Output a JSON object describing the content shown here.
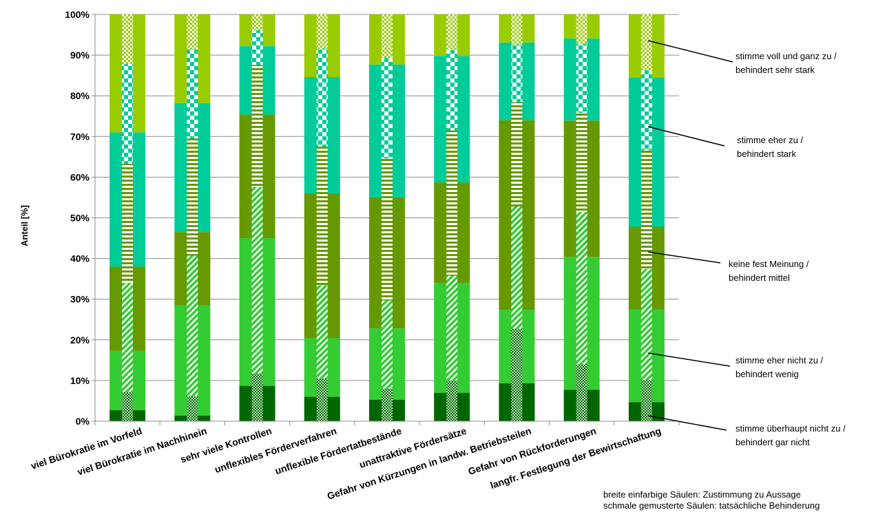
{
  "chart_data": {
    "type": "bar",
    "stacked": true,
    "ylabel": "Anteil [%]",
    "ylim": [
      0,
      100
    ],
    "yticks": [
      "0%",
      "10%",
      "20%",
      "30%",
      "40%",
      "50%",
      "60%",
      "70%",
      "80%",
      "90%",
      "100%"
    ],
    "grid": true,
    "categories": [
      "viel Bürokratie im Vorfeld",
      "viel Bürokratie im Nachhinein",
      "sehr viele Kontrollen",
      "unflexibles Förderverfahren",
      "unflexible Fördertatbestände",
      "unattraktive Fördersätze",
      "Gefahr von Kürzungen in landw. Betriebsteilen",
      "Gefahr von Rückforderungen",
      "langfr. Festlegung der Bewirtschaftung"
    ],
    "series_labels": [
      "stimme überhaupt nicht zu / behindert gar nicht",
      "stimme eher nicht zu / behindert wenig",
      "keine fest Meinung / behindert mittel",
      "stimme eher zu / behindert stark",
      "stimme voll und ganz zu / behindert sehr stark"
    ],
    "colors": [
      "#006600",
      "#33cc33",
      "#669900",
      "#00cc99",
      "#99cc00"
    ],
    "agreement_cumulative": [
      [
        2.7,
        17.3,
        38,
        71,
        100
      ],
      [
        1.4,
        28.5,
        46.5,
        78.2,
        100
      ],
      [
        8.7,
        45,
        75.4,
        92.2,
        100
      ],
      [
        6,
        20.4,
        56,
        84.6,
        100
      ],
      [
        5.3,
        22.8,
        55,
        87.7,
        100
      ],
      [
        7,
        34,
        58.7,
        89.8,
        100
      ],
      [
        9.3,
        27.4,
        74,
        93.1,
        100
      ],
      [
        7.7,
        40.4,
        73.9,
        94.1,
        100
      ],
      [
        4.7,
        27.5,
        47.8,
        84.5,
        100
      ]
    ],
    "hindrance_cumulative": [
      [
        7.2,
        34,
        63.3,
        87.8,
        100
      ],
      [
        6.1,
        40.7,
        69.5,
        91.5,
        100
      ],
      [
        11.7,
        57.6,
        87.6,
        96.1,
        100
      ],
      [
        10.5,
        33.4,
        67.5,
        91.6,
        100
      ],
      [
        8,
        29.7,
        64.6,
        89.3,
        100
      ],
      [
        10,
        35.8,
        71.5,
        91.2,
        100
      ],
      [
        22.7,
        52.8,
        78.4,
        92.6,
        100
      ],
      [
        14,
        51.4,
        75.8,
        92.8,
        100
      ],
      [
        10.1,
        37.4,
        66.6,
        86.4,
        100
      ]
    ]
  },
  "annotations": [
    {
      "line1": "stimme voll und ganz zu /",
      "line2": "behindert sehr stark"
    },
    {
      "line1": "stimme eher zu /",
      "line2": "behindert stark"
    },
    {
      "line1": "keine fest Meinung /",
      "line2": "behindert mittel"
    },
    {
      "line1": "stimme eher nicht zu /",
      "line2": "behindert wenig"
    },
    {
      "line1": "stimme überhaupt nicht zu /",
      "line2": "behindert gar nicht"
    }
  ],
  "note": {
    "line1": "breite einfarbige Säulen: Zustimmung zu Aussage",
    "line2": "schmale gemusterte Säulen: tatsächliche Behinderung"
  }
}
